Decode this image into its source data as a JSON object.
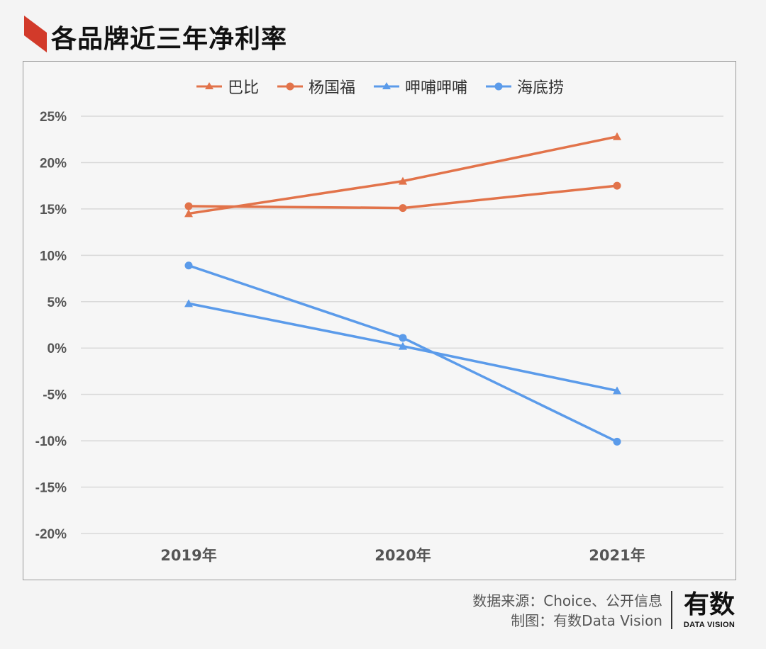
{
  "page": {
    "title": "各品牌近三年净利率"
  },
  "colors": {
    "orange": "#e2734a",
    "blue": "#5b9bea",
    "grid": "#d9d9d9",
    "flag": "#d23a2a"
  },
  "chart_data": {
    "type": "line",
    "title": "各品牌近三年净利率",
    "categories": [
      "2019年",
      "2020年",
      "2021年"
    ],
    "ylim": [
      -20,
      25
    ],
    "yticks": [
      25,
      20,
      15,
      10,
      5,
      0,
      -5,
      -10,
      -15,
      -20
    ],
    "ytick_labels": [
      "25%",
      "20%",
      "15%",
      "10%",
      "5%",
      "0%",
      "-5%",
      "-10%",
      "-15%",
      "-20%"
    ],
    "grid": true,
    "legend_position": "top",
    "series": [
      {
        "name": "巴比",
        "values": [
          14.5,
          18.0,
          22.8
        ],
        "color": "#e2734a",
        "marker": "triangle"
      },
      {
        "name": "杨国福",
        "values": [
          15.3,
          15.1,
          17.5
        ],
        "color": "#e2734a",
        "marker": "circle"
      },
      {
        "name": "呷哺呷哺",
        "values": [
          4.8,
          0.2,
          -4.6
        ],
        "color": "#5b9bea",
        "marker": "triangle"
      },
      {
        "name": "海底捞",
        "values": [
          8.9,
          1.1,
          -10.1
        ],
        "color": "#5b9bea",
        "marker": "circle"
      }
    ]
  },
  "source": {
    "line1": "数据来源：Choice、公开信息",
    "line2": "制图：有数Data Vision"
  },
  "brand": {
    "name": "有数",
    "sub": "DATA VISION"
  }
}
